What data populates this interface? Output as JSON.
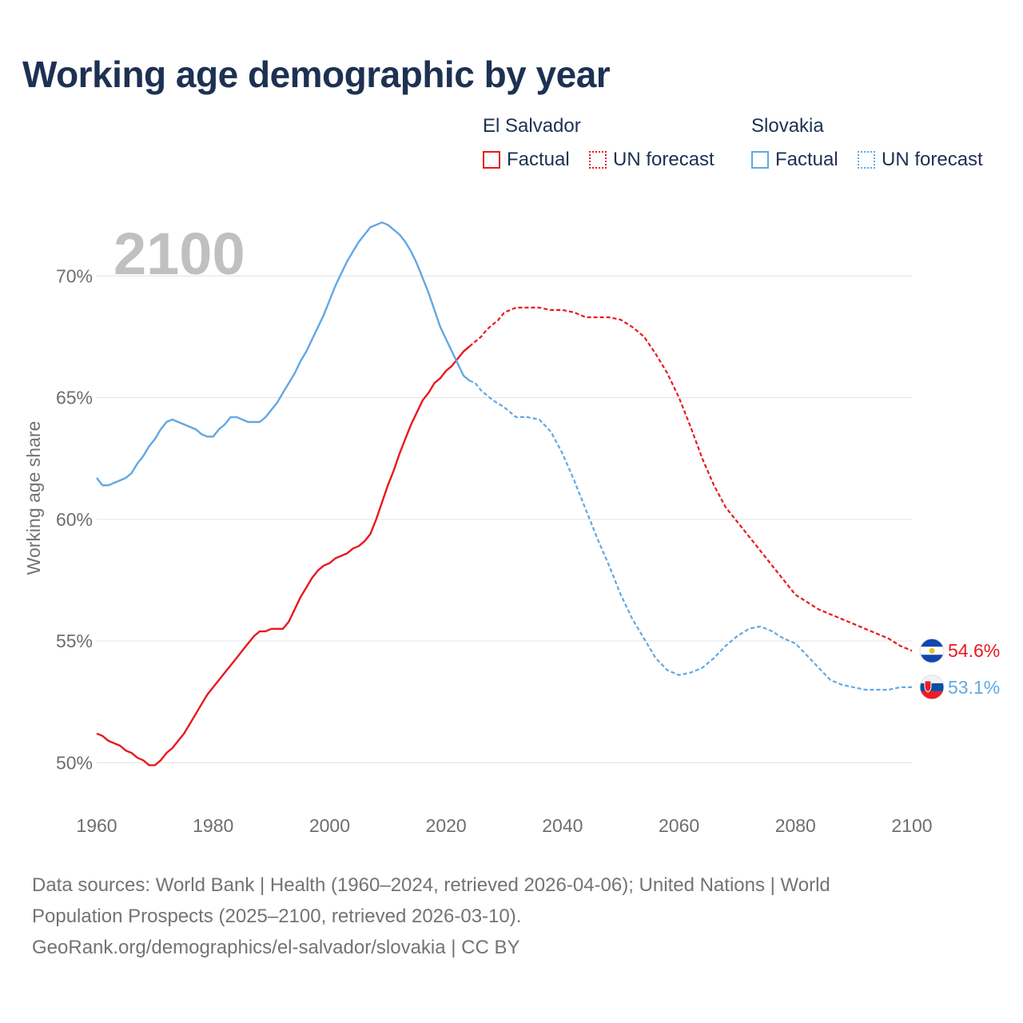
{
  "title": "Working age demographic by year",
  "year_watermark": "2100",
  "legend": [
    {
      "country": "El Salvador",
      "factual_label": "Factual",
      "forecast_label": "UN forecast",
      "color": "#e8191e"
    },
    {
      "country": "Slovakia",
      "factual_label": "Factual",
      "forecast_label": "UN forecast",
      "color": "#62a8e4"
    }
  ],
  "footer": {
    "line1": "Data sources: World Bank | Health (1960–2024, retrieved 2026-04-06); United Nations | World",
    "line2": "Population Prospects (2025–2100, retrieved 2026-03-10).",
    "line3": "GeoRank.org/demographics/el-salvador/slovakia | CC BY"
  },
  "chart_data": {
    "type": "line",
    "title": "Working age demographic by year",
    "xlabel": "",
    "ylabel": "Working age share",
    "xlim": [
      1960,
      2100
    ],
    "ylim": [
      48.5,
      72.8
    ],
    "x_ticks": [
      1960,
      1980,
      2000,
      2020,
      2040,
      2060,
      2080,
      2100
    ],
    "y_ticks": [
      50,
      55,
      60,
      65,
      70
    ],
    "y_tick_labels": [
      "50%",
      "55%",
      "60%",
      "65%",
      "70%"
    ],
    "grid": "horizontal",
    "factual_end_year": 2024,
    "series": [
      {
        "name": "El Salvador",
        "color": "#e8191e",
        "end_label": "54.6%",
        "x": [
          1960,
          1961,
          1962,
          1963,
          1964,
          1965,
          1966,
          1967,
          1968,
          1969,
          1970,
          1971,
          1972,
          1973,
          1974,
          1975,
          1976,
          1977,
          1978,
          1979,
          1980,
          1981,
          1982,
          1983,
          1984,
          1985,
          1986,
          1987,
          1988,
          1989,
          1990,
          1991,
          1992,
          1993,
          1994,
          1995,
          1996,
          1997,
          1998,
          1999,
          2000,
          2001,
          2002,
          2003,
          2004,
          2005,
          2006,
          2007,
          2008,
          2009,
          2010,
          2011,
          2012,
          2013,
          2014,
          2015,
          2016,
          2017,
          2018,
          2019,
          2020,
          2021,
          2022,
          2023,
          2024,
          2025,
          2026,
          2027,
          2028,
          2029,
          2030,
          2032,
          2034,
          2036,
          2038,
          2040,
          2042,
          2044,
          2046,
          2048,
          2050,
          2052,
          2054,
          2056,
          2058,
          2060,
          2062,
          2064,
          2066,
          2068,
          2070,
          2072,
          2074,
          2076,
          2078,
          2080,
          2082,
          2084,
          2086,
          2088,
          2090,
          2092,
          2094,
          2096,
          2098,
          2100
        ],
        "values": [
          51.2,
          51.1,
          50.9,
          50.8,
          50.7,
          50.5,
          50.4,
          50.2,
          50.1,
          49.9,
          49.9,
          50.1,
          50.4,
          50.6,
          50.9,
          51.2,
          51.6,
          52.0,
          52.4,
          52.8,
          53.1,
          53.4,
          53.7,
          54.0,
          54.3,
          54.6,
          54.9,
          55.2,
          55.4,
          55.4,
          55.5,
          55.5,
          55.5,
          55.8,
          56.3,
          56.8,
          57.2,
          57.6,
          57.9,
          58.1,
          58.2,
          58.4,
          58.5,
          58.6,
          58.8,
          58.9,
          59.1,
          59.4,
          60.0,
          60.7,
          61.4,
          62.0,
          62.7,
          63.3,
          63.9,
          64.4,
          64.9,
          65.2,
          65.6,
          65.8,
          66.1,
          66.3,
          66.6,
          66.9,
          67.1,
          67.3,
          67.5,
          67.8,
          68.0,
          68.2,
          68.5,
          68.7,
          68.7,
          68.7,
          68.6,
          68.6,
          68.5,
          68.3,
          68.3,
          68.3,
          68.2,
          67.9,
          67.5,
          66.8,
          66.0,
          65.0,
          63.8,
          62.5,
          61.4,
          60.5,
          59.9,
          59.3,
          58.7,
          58.1,
          57.5,
          56.9,
          56.6,
          56.3,
          56.1,
          55.9,
          55.7,
          55.5,
          55.3,
          55.1,
          54.8,
          54.6
        ]
      },
      {
        "name": "Slovakia",
        "color": "#62a8e4",
        "end_label": "53.1%",
        "x": [
          1960,
          1961,
          1962,
          1963,
          1964,
          1965,
          1966,
          1967,
          1968,
          1969,
          1970,
          1971,
          1972,
          1973,
          1974,
          1975,
          1976,
          1977,
          1978,
          1979,
          1980,
          1981,
          1982,
          1983,
          1984,
          1985,
          1986,
          1987,
          1988,
          1989,
          1990,
          1991,
          1992,
          1993,
          1994,
          1995,
          1996,
          1997,
          1998,
          1999,
          2000,
          2001,
          2002,
          2003,
          2004,
          2005,
          2006,
          2007,
          2008,
          2009,
          2010,
          2011,
          2012,
          2013,
          2014,
          2015,
          2016,
          2017,
          2018,
          2019,
          2020,
          2021,
          2022,
          2023,
          2024,
          2025,
          2026,
          2028,
          2030,
          2032,
          2034,
          2036,
          2038,
          2040,
          2042,
          2044,
          2046,
          2048,
          2050,
          2052,
          2054,
          2056,
          2058,
          2060,
          2062,
          2064,
          2066,
          2068,
          2070,
          2072,
          2074,
          2076,
          2078,
          2080,
          2082,
          2084,
          2086,
          2088,
          2090,
          2092,
          2094,
          2096,
          2098,
          2100
        ],
        "values": [
          61.7,
          61.4,
          61.4,
          61.5,
          61.6,
          61.7,
          61.9,
          62.3,
          62.6,
          63.0,
          63.3,
          63.7,
          64.0,
          64.1,
          64.0,
          63.9,
          63.8,
          63.7,
          63.5,
          63.4,
          63.4,
          63.7,
          63.9,
          64.2,
          64.2,
          64.1,
          64.0,
          64.0,
          64.0,
          64.2,
          64.5,
          64.8,
          65.2,
          65.6,
          66.0,
          66.5,
          66.9,
          67.4,
          67.9,
          68.4,
          69.0,
          69.6,
          70.1,
          70.6,
          71.0,
          71.4,
          71.7,
          72.0,
          72.1,
          72.2,
          72.1,
          71.9,
          71.7,
          71.4,
          71.0,
          70.5,
          69.9,
          69.3,
          68.6,
          67.9,
          67.4,
          66.9,
          66.4,
          65.9,
          65.7,
          65.6,
          65.3,
          64.9,
          64.6,
          64.2,
          64.2,
          64.1,
          63.6,
          62.7,
          61.6,
          60.4,
          59.2,
          58.1,
          56.9,
          55.9,
          55.1,
          54.3,
          53.8,
          53.6,
          53.7,
          53.9,
          54.3,
          54.8,
          55.2,
          55.5,
          55.6,
          55.4,
          55.1,
          54.9,
          54.4,
          53.9,
          53.4,
          53.2,
          53.1,
          53.0,
          53.0,
          53.0,
          53.1,
          53.1
        ]
      }
    ]
  }
}
